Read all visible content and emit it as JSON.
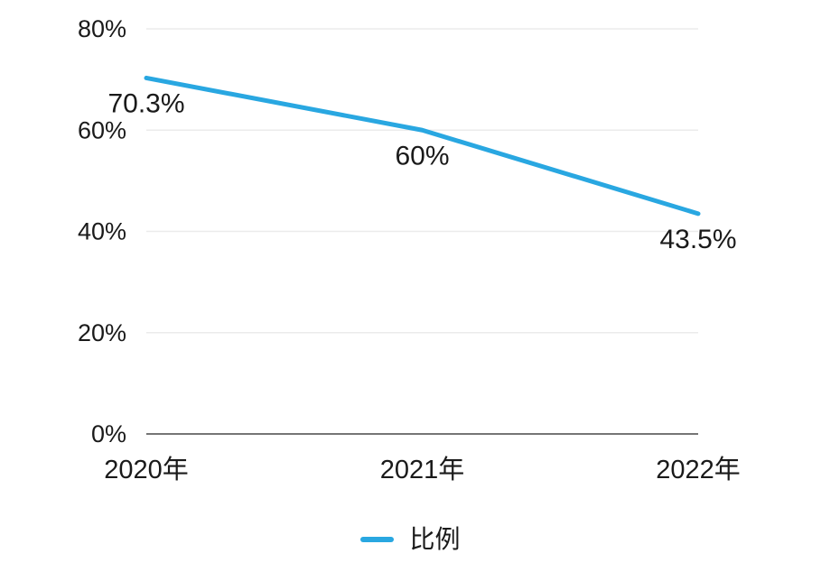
{
  "chart_data": {
    "type": "line",
    "title": "",
    "xlabel": "",
    "ylabel": "",
    "categories": [
      "2020年",
      "2021年",
      "2022年"
    ],
    "series": [
      {
        "name": "比例",
        "values": [
          70.3,
          60,
          43.5
        ],
        "data_labels": [
          "70.3%",
          "60%",
          "43.5%"
        ]
      }
    ],
    "ylim": [
      0,
      80
    ],
    "yticks": [
      0,
      20,
      40,
      60,
      80
    ],
    "ytick_labels": [
      "0%",
      "20%",
      "40%",
      "60%",
      "80%"
    ],
    "grid": "horizontal",
    "legend_position": "bottom-center",
    "colors": {
      "line": "#29a7e1",
      "grid": "#ebebeb",
      "axis": "#757575",
      "text": "#1a1a1a",
      "background": "#ffffff"
    }
  }
}
